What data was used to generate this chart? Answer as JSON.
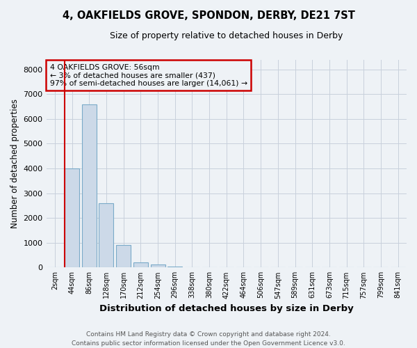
{
  "title": "4, OAKFIELDS GROVE, SPONDON, DERBY, DE21 7ST",
  "subtitle": "Size of property relative to detached houses in Derby",
  "xlabel": "Distribution of detached houses by size in Derby",
  "ylabel": "Number of detached properties",
  "bar_labels": [
    "2sqm",
    "44sqm",
    "86sqm",
    "128sqm",
    "170sqm",
    "212sqm",
    "254sqm",
    "296sqm",
    "338sqm",
    "380sqm",
    "422sqm",
    "464sqm",
    "506sqm",
    "547sqm",
    "589sqm",
    "631sqm",
    "673sqm",
    "715sqm",
    "757sqm",
    "799sqm",
    "841sqm"
  ],
  "bar_values": [
    0,
    4000,
    6600,
    2600,
    900,
    210,
    120,
    50,
    20,
    0,
    0,
    0,
    0,
    0,
    0,
    0,
    0,
    0,
    0,
    0,
    0
  ],
  "bar_color": "#ccd9e8",
  "bar_edge_color": "#7aaac8",
  "grid_color": "#c8d0dc",
  "bg_color": "#eef2f6",
  "annotation_line1": "4 OAKFIELDS GROVE: 56sqm",
  "annotation_line2": "← 3% of detached houses are smaller (437)",
  "annotation_line3": "97% of semi-detached houses are larger (14,061) →",
  "annotation_box_color": "#cc0000",
  "red_line_x": 0.72,
  "ylim": [
    0,
    8400
  ],
  "yticks": [
    0,
    1000,
    2000,
    3000,
    4000,
    5000,
    6000,
    7000,
    8000
  ],
  "title_fontsize": 10.5,
  "subtitle_fontsize": 9,
  "footer_line1": "Contains HM Land Registry data © Crown copyright and database right 2024.",
  "footer_line2": "Contains public sector information licensed under the Open Government Licence v3.0."
}
